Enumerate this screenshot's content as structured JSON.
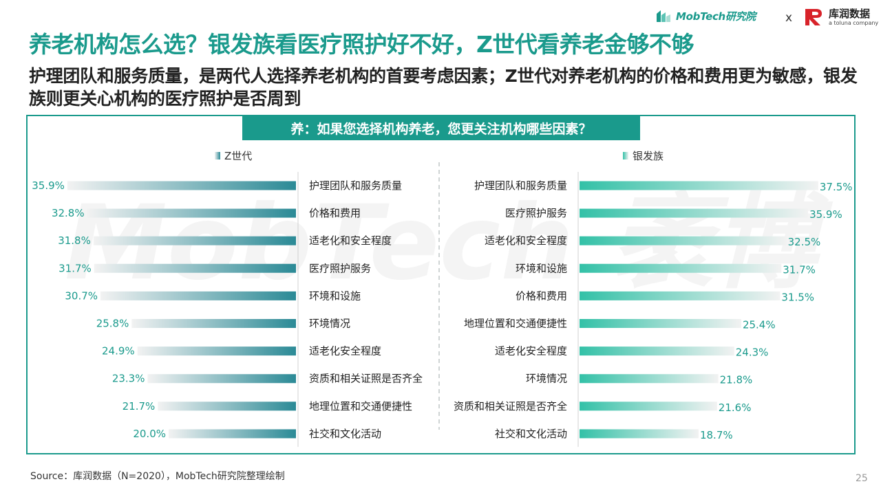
{
  "header": {
    "mobtech_logo_text": "MobTech研究院",
    "separator": "x",
    "partner_logo_name": "库润数据",
    "partner_logo_sub": "a toluna company"
  },
  "title": "养老机构怎么选？银发族看医疗照护好不好，Z世代看养老金够不够",
  "subtitle": "护理团队和服务质量，是两代人选择养老机构的首要考虑因素；Z世代对养老机构的价格和费用更为敏感，银发族则更关心机构的医疗照护是否周到",
  "question": "养：如果您选择机构养老，您更关注机构哪些因素？",
  "watermark": "MobTech 袤博",
  "colors": {
    "accent": "#1a9a8c",
    "left_bar": "#2b8a96",
    "right_bar": "#33c1a7",
    "value_text": "#1a9a8c"
  },
  "chart_data": [
    {
      "type": "bar",
      "orientation": "horizontal",
      "direction": "right-to-left",
      "legend": "Z世代",
      "categories": [
        "护理团队和服务质量",
        "价格和费用",
        "适老化和安全程度",
        "医疗照护服务",
        "环境和设施",
        "环境情况",
        "适老化安全程度",
        "资质和相关证照是否齐全",
        "地理位置和交通便捷性",
        "社交和文化活动"
      ],
      "values": [
        35.9,
        32.8,
        31.8,
        31.7,
        30.7,
        25.8,
        24.9,
        23.3,
        21.7,
        20.0
      ],
      "labels": [
        "35.9%",
        "32.8%",
        "31.8%",
        "31.7%",
        "30.7%",
        "25.8%",
        "24.9%",
        "23.3%",
        "21.7%",
        "20.0%"
      ],
      "unit": "%"
    },
    {
      "type": "bar",
      "orientation": "horizontal",
      "direction": "left-to-right",
      "legend": "银发族",
      "categories": [
        "护理团队和服务质量",
        "医疗照护服务",
        "适老化和安全程度",
        "环境和设施",
        "价格和费用",
        "地理位置和交通便捷性",
        "适老化安全程度",
        "环境情况",
        "资质和相关证照是否齐全",
        "社交和文化活动"
      ],
      "values": [
        37.5,
        35.9,
        32.5,
        31.7,
        31.5,
        25.4,
        24.3,
        21.8,
        21.6,
        18.7
      ],
      "labels": [
        "37.5%",
        "35.9%",
        "32.5%",
        "31.7%",
        "31.5%",
        "25.4%",
        "24.3%",
        "21.8%",
        "21.6%",
        "18.7%"
      ],
      "unit": "%"
    }
  ],
  "source": "Source：库润数据（N=2020），MobTech研究院整理绘制",
  "page_number": "25"
}
